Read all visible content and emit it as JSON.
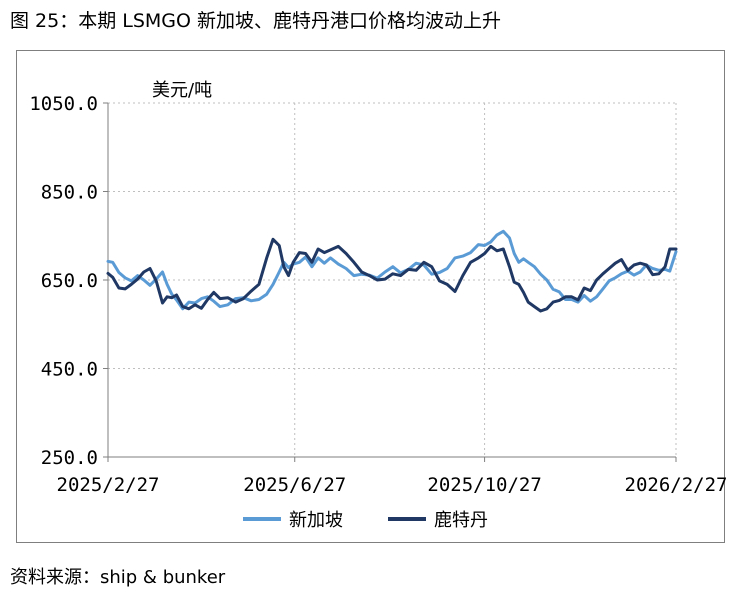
{
  "figure_title": "图 25：本期 LSMGO 新加坡、鹿特丹港口价格均波动上升",
  "source_note": "资料来源：ship & bunker",
  "colors": {
    "新加坡": "#5b9bd5",
    "鹿特丹": "#1f3864",
    "grid": "#bfbfbf",
    "axis": "#7f7f7f"
  },
  "chart_data": {
    "type": "line",
    "title": "",
    "ylabel": "美元/吨",
    "xlabel": "",
    "ylim": [
      250,
      1050
    ],
    "yticks": [
      250,
      450,
      650,
      850,
      1050
    ],
    "ytick_labels": [
      "250.0",
      "450.0",
      "650.0",
      "850.0",
      "1050.0"
    ],
    "xlim": [
      "2025-02-27",
      "2026-02-27"
    ],
    "xticks": [
      "2025-02-27",
      "2025-06-27",
      "2025-10-27",
      "2026-02-27"
    ],
    "xtick_labels": [
      "2025/2/27",
      "2025/6/27",
      "2025/10/27",
      "2026/2/27"
    ],
    "grid": true,
    "legend": "bottom",
    "series": [
      {
        "name": "新加坡",
        "x": [
          "2025-02-27",
          "2025-03-02",
          "2025-03-06",
          "2025-03-10",
          "2025-03-14",
          "2025-03-18",
          "2025-03-22",
          "2025-03-26",
          "2025-03-30",
          "2025-04-03",
          "2025-04-06",
          "2025-04-09",
          "2025-04-12",
          "2025-04-16",
          "2025-04-20",
          "2025-04-24",
          "2025-04-28",
          "2025-05-02",
          "2025-05-06",
          "2025-05-10",
          "2025-05-15",
          "2025-05-20",
          "2025-05-25",
          "2025-05-30",
          "2025-06-04",
          "2025-06-09",
          "2025-06-13",
          "2025-06-17",
          "2025-06-20",
          "2025-06-23",
          "2025-06-26",
          "2025-06-30",
          "2025-07-04",
          "2025-07-08",
          "2025-07-12",
          "2025-07-16",
          "2025-07-20",
          "2025-07-25",
          "2025-07-30",
          "2025-08-04",
          "2025-08-09",
          "2025-08-14",
          "2025-08-19",
          "2025-08-24",
          "2025-08-29",
          "2025-09-03",
          "2025-09-08",
          "2025-09-13",
          "2025-09-18",
          "2025-09-23",
          "2025-09-28",
          "2025-10-03",
          "2025-10-08",
          "2025-10-13",
          "2025-10-18",
          "2025-10-23",
          "2025-10-27",
          "2025-10-31",
          "2025-11-04",
          "2025-11-08",
          "2025-11-12",
          "2025-11-15",
          "2025-11-18",
          "2025-11-21",
          "2025-11-24",
          "2025-11-28",
          "2025-12-02",
          "2025-12-06",
          "2025-12-10",
          "2025-12-14",
          "2025-12-18",
          "2025-12-22",
          "2025-12-26",
          "2025-12-30",
          "2026-01-03",
          "2026-01-07",
          "2026-01-11",
          "2026-01-15",
          "2026-01-19",
          "2026-01-23",
          "2026-01-27",
          "2026-01-31",
          "2026-02-04",
          "2026-02-08",
          "2026-02-12",
          "2026-02-16",
          "2026-02-20",
          "2026-02-23",
          "2026-02-27"
        ],
        "y": [
          692,
          690,
          667,
          655,
          648,
          660,
          650,
          638,
          652,
          668,
          640,
          618,
          605,
          585,
          600,
          598,
          608,
          612,
          602,
          590,
          594,
          608,
          610,
          603,
          606,
          618,
          640,
          668,
          690,
          678,
          686,
          690,
          702,
          680,
          700,
          688,
          700,
          686,
          676,
          660,
          663,
          661,
          654,
          668,
          680,
          666,
          674,
          688,
          684,
          663,
          667,
          676,
          700,
          704,
          712,
          730,
          728,
          736,
          752,
          760,
          745,
          710,
          690,
          698,
          690,
          680,
          663,
          650,
          629,
          623,
          606,
          606,
          600,
          615,
          602,
          612,
          630,
          648,
          655,
          664,
          670,
          661,
          668,
          684,
          676,
          672,
          674,
          670,
          714
        ]
      },
      {
        "name": "鹿特丹",
        "x": [
          "2025-02-27",
          "2025-03-02",
          "2025-03-06",
          "2025-03-10",
          "2025-03-14",
          "2025-03-18",
          "2025-03-22",
          "2025-03-26",
          "2025-03-30",
          "2025-04-03",
          "2025-04-06",
          "2025-04-09",
          "2025-04-12",
          "2025-04-16",
          "2025-04-20",
          "2025-04-24",
          "2025-04-28",
          "2025-05-02",
          "2025-05-06",
          "2025-05-10",
          "2025-05-15",
          "2025-05-20",
          "2025-05-25",
          "2025-05-30",
          "2025-06-04",
          "2025-06-09",
          "2025-06-13",
          "2025-06-17",
          "2025-06-20",
          "2025-06-23",
          "2025-06-26",
          "2025-06-30",
          "2025-07-04",
          "2025-07-08",
          "2025-07-12",
          "2025-07-16",
          "2025-07-20",
          "2025-07-25",
          "2025-07-30",
          "2025-08-04",
          "2025-08-09",
          "2025-08-14",
          "2025-08-19",
          "2025-08-24",
          "2025-08-29",
          "2025-09-03",
          "2025-09-08",
          "2025-09-13",
          "2025-09-18",
          "2025-09-23",
          "2025-09-28",
          "2025-10-03",
          "2025-10-08",
          "2025-10-13",
          "2025-10-18",
          "2025-10-23",
          "2025-10-27",
          "2025-10-31",
          "2025-11-04",
          "2025-11-08",
          "2025-11-12",
          "2025-11-15",
          "2025-11-18",
          "2025-11-21",
          "2025-11-24",
          "2025-11-28",
          "2025-12-02",
          "2025-12-06",
          "2025-12-10",
          "2025-12-14",
          "2025-12-18",
          "2025-12-22",
          "2025-12-26",
          "2025-12-30",
          "2026-01-03",
          "2026-01-07",
          "2026-01-11",
          "2026-01-15",
          "2026-01-19",
          "2026-01-23",
          "2026-01-27",
          "2026-01-31",
          "2026-02-04",
          "2026-02-08",
          "2026-02-12",
          "2026-02-16",
          "2026-02-20",
          "2026-02-23",
          "2026-02-27"
        ],
        "y": [
          665,
          656,
          632,
          630,
          640,
          652,
          668,
          676,
          648,
          598,
          612,
          610,
          616,
          590,
          585,
          594,
          586,
          606,
          622,
          608,
          610,
          600,
          608,
          625,
          640,
          700,
          742,
          728,
          680,
          660,
          690,
          712,
          710,
          690,
          720,
          712,
          718,
          726,
          710,
          690,
          668,
          660,
          650,
          652,
          664,
          660,
          674,
          672,
          690,
          680,
          648,
          640,
          624,
          660,
          690,
          700,
          710,
          726,
          716,
          720,
          680,
          645,
          640,
          622,
          600,
          590,
          580,
          585,
          600,
          604,
          612,
          612,
          605,
          632,
          626,
          650,
          664,
          676,
          688,
          696,
          672,
          684,
          688,
          684,
          662,
          664,
          680,
          720,
          720
        ]
      }
    ]
  }
}
